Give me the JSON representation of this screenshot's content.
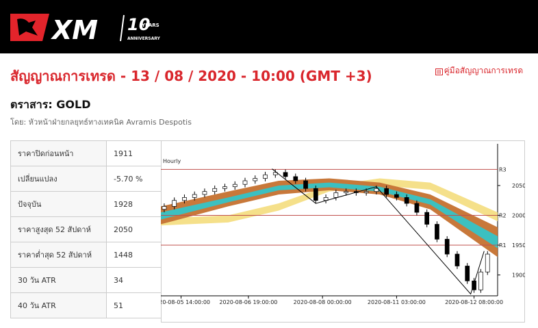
{
  "header": {
    "logo": "XM",
    "anniversary_number": "10",
    "anniversary_years": "YEARS",
    "anniversary_text": "ANNIVERSARY"
  },
  "title": "สัญญาณการเทรด - 13 / 08 / 2020 - 10:00 (GMT +3)",
  "guide_link": "คู่มือสัญญาณการเทรด",
  "instrument": "ตราสาร: GOLD",
  "author": "โดย: หัวหน้าฝ่ายกลยุทธ์ทางเทคนิค Avramis Despotis",
  "table": {
    "rows": [
      [
        "ราคาปิดก่อนหน้า",
        "1911"
      ],
      [
        "เปลี่ยนแปลง",
        "-5.70 %"
      ],
      [
        "ปัจจุบัน",
        "1928"
      ],
      [
        "ราคาสูงสุด 52 สัปดาห์",
        "2050"
      ],
      [
        "ราคาต่ำสุด 52 สัปดาห์",
        "1448"
      ],
      [
        "30 วัน ATR",
        "34"
      ],
      [
        "40 วัน ATR",
        "51"
      ]
    ]
  },
  "chart_data": {
    "type": "candlestick",
    "annotation": "Hourly",
    "xlim": [
      0,
      100
    ],
    "xticks": [
      {
        "value": 6,
        "label": "2020-08-05 14:00:00"
      },
      {
        "value": 26,
        "label": "2020-08-06 19:00:00"
      },
      {
        "value": 48,
        "label": "2020-08-08 00:00:00"
      },
      {
        "value": 70,
        "label": "2020-08-11 03:00:00"
      },
      {
        "value": 93,
        "label": "2020-08-12 08:00:00"
      }
    ],
    "ylim": [
      1865,
      2120
    ],
    "yticks": [
      1900,
      1950,
      2000,
      2050
    ],
    "x": [
      1,
      4,
      7,
      10,
      13,
      16,
      19,
      22,
      25,
      28,
      31,
      34,
      37,
      40,
      43,
      46,
      49,
      52,
      55,
      58,
      61,
      64,
      67,
      70,
      73,
      76,
      79,
      82,
      85,
      88,
      91,
      93,
      95,
      97
    ],
    "open": [
      2010,
      2015,
      2025,
      2030,
      2035,
      2040,
      2045,
      2048,
      2052,
      2058,
      2062,
      2068,
      2072,
      2065,
      2058,
      2045,
      2025,
      2030,
      2038,
      2040,
      2038,
      2040,
      2045,
      2035,
      2030,
      2020,
      2005,
      1985,
      1960,
      1935,
      1915,
      1890,
      1875,
      1905
    ],
    "high": [
      2020,
      2030,
      2035,
      2040,
      2045,
      2050,
      2053,
      2057,
      2063,
      2067,
      2073,
      2077,
      2077,
      2070,
      2063,
      2050,
      2035,
      2043,
      2045,
      2045,
      2045,
      2050,
      2050,
      2040,
      2035,
      2025,
      2010,
      1990,
      1965,
      1940,
      1920,
      1895,
      1910,
      1940
    ],
    "low": [
      2005,
      2010,
      2020,
      2025,
      2030,
      2035,
      2040,
      2043,
      2047,
      2053,
      2057,
      2063,
      2060,
      2053,
      2040,
      2020,
      2020,
      2025,
      2033,
      2033,
      2033,
      2035,
      2030,
      2025,
      2015,
      2000,
      1980,
      1955,
      1930,
      1910,
      1885,
      1870,
      1870,
      1900
    ],
    "close": [
      2015,
      2025,
      2030,
      2035,
      2040,
      2045,
      2048,
      2052,
      2058,
      2062,
      2068,
      2072,
      2065,
      2058,
      2045,
      2025,
      2030,
      2038,
      2040,
      2038,
      2040,
      2045,
      2035,
      2030,
      2020,
      2005,
      1985,
      1960,
      1935,
      1915,
      1890,
      1875,
      1905,
      1935
    ],
    "up_color": "#ffffff",
    "down_color": "#000000",
    "bands": [
      {
        "color": "#f5e08a",
        "x": [
          0,
          20,
          35,
          50,
          65,
          80,
          100
        ],
        "upper": [
          1995,
          2000,
          2020,
          2050,
          2062,
          2055,
          2005
        ],
        "lower": [
          1983,
          1988,
          2008,
          2040,
          2050,
          2043,
          1990
        ]
      },
      {
        "color": "#c8783a",
        "x": [
          0,
          20,
          35,
          50,
          65,
          80,
          100
        ],
        "upper": [
          2015,
          2040,
          2058,
          2062,
          2055,
          2035,
          1980
        ],
        "lower": [
          1985,
          2015,
          2035,
          2042,
          2035,
          2010,
          1930
        ]
      },
      {
        "color": "#3cc0c0",
        "x": [
          0,
          20,
          35,
          50,
          65,
          80,
          100
        ],
        "upper": [
          2005,
          2030,
          2050,
          2055,
          2048,
          2027,
          1965
        ],
        "lower": [
          1993,
          2022,
          2042,
          2047,
          2040,
          2018,
          1945
        ]
      }
    ],
    "zigzag": {
      "x": [
        33,
        46,
        64,
        92,
        96
      ],
      "values": [
        2078,
        2020,
        2048,
        1868,
        1940
      ]
    },
    "levels": [
      {
        "label": "R3",
        "value": 2077,
        "color": "#c0504d"
      },
      {
        "label": "R2",
        "value": 2000,
        "color": "#c0504d"
      },
      {
        "label": "R1",
        "value": 1950,
        "color": "#c0504d"
      }
    ]
  }
}
